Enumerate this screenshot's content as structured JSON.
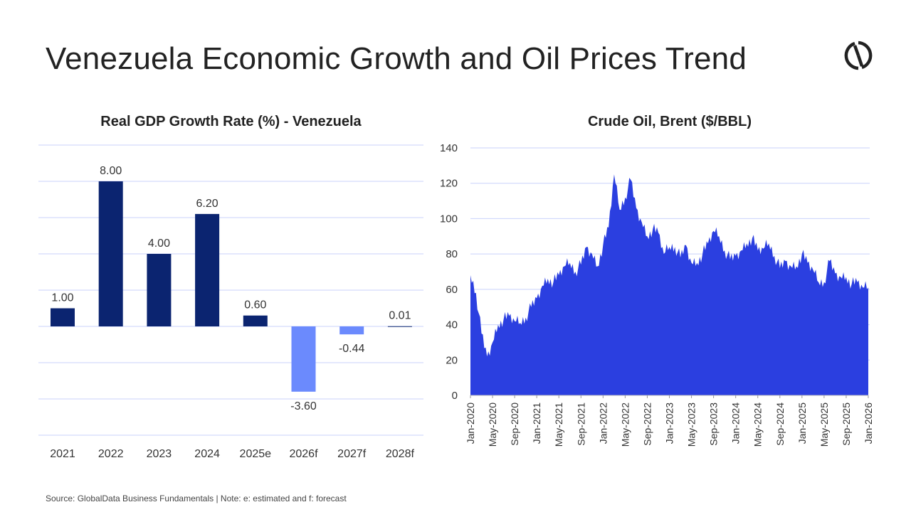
{
  "title": "Venezuela Economic Growth and Oil Prices Trend",
  "source": "Source: GlobalData Business Fundamentals | Note: e: estimated and f: forecast",
  "colors": {
    "bar_positive": "#0b2470",
    "bar_negative": "#6b8afd",
    "area": "#2b3fe0",
    "grid": "#c9d2fb"
  },
  "chart_data": [
    {
      "type": "bar",
      "title": "Real GDP Growth Rate (%) - Venezuela",
      "categories": [
        "2021",
        "2022",
        "2023",
        "2024",
        "2025e",
        "2026f",
        "2027f",
        "2028f"
      ],
      "values": [
        1.0,
        8.0,
        4.0,
        6.2,
        0.6,
        -3.6,
        -0.44,
        0.01
      ],
      "labels": [
        "1.00",
        "8.00",
        "4.00",
        "6.20",
        "0.60",
        "-3.60",
        "-0.44",
        "0.01"
      ],
      "ylim": [
        -6,
        10
      ],
      "grid": true,
      "xlabel": "",
      "ylabel": ""
    },
    {
      "type": "area",
      "title": "Crude Oil, Brent ($/BBL)",
      "ylim": [
        0,
        140
      ],
      "yticks": [
        "0",
        "20",
        "40",
        "60",
        "80",
        "100",
        "120",
        "140"
      ],
      "xticks": [
        "Jan-2020",
        "May-2020",
        "Sep-2020",
        "Jan-2021",
        "May-2021",
        "Sep-2021",
        "Jan-2022",
        "May-2022",
        "Sep-2022",
        "Jan-2023",
        "May-2023",
        "Sep-2023",
        "Jan-2024",
        "May-2024",
        "Sep-2024",
        "Jan-2025",
        "May-2025",
        "Sep-2025",
        "Jan-2026"
      ],
      "x_unit": "months since Jan-2020",
      "values": [
        68,
        58,
        35,
        22,
        30,
        40,
        43,
        45,
        42,
        41,
        44,
        50,
        55,
        62,
        66,
        64,
        68,
        73,
        75,
        70,
        74,
        84,
        80,
        73,
        85,
        95,
        125,
        105,
        112,
        122,
        106,
        98,
        90,
        94,
        92,
        80,
        84,
        84,
        78,
        85,
        75,
        75,
        80,
        86,
        93,
        90,
        82,
        77,
        79,
        82,
        86,
        89,
        82,
        83,
        86,
        79,
        72,
        76,
        73,
        73,
        80,
        75,
        71,
        64,
        64,
        76,
        69,
        67,
        67,
        63,
        64,
        61,
        61
      ],
      "grid": true
    }
  ]
}
